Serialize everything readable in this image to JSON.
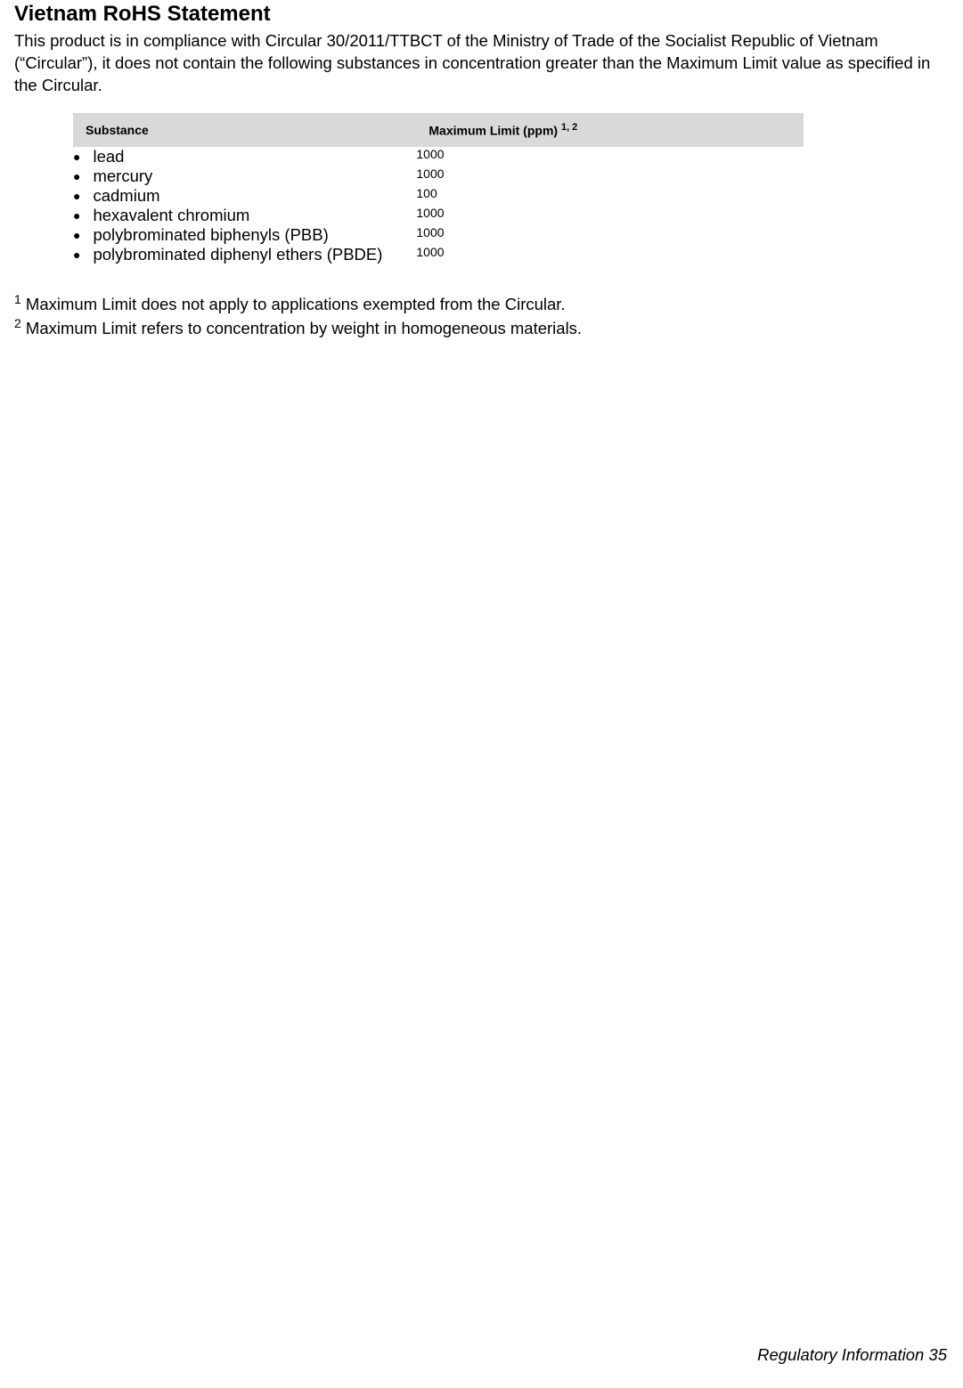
{
  "heading": "Vietnam RoHS Statement",
  "intro": "This product is in compliance with Circular 30/2011/TTBCT of the Ministry of Trade of the Socialist Republic of Vietnam (“Circular”), it does not contain the following substances in concentration greater than the Maximum Limit value as specified in the Circular.",
  "table": {
    "header_bg": "#d9d9d9",
    "columns": {
      "substance": "Substance",
      "max_limit_label": "Maximum Limit (ppm)",
      "max_limit_sup": "1, 2"
    },
    "rows": [
      {
        "substance": "lead",
        "limit": "1000"
      },
      {
        "substance": "mercury",
        "limit": "1000"
      },
      {
        "substance": "cadmium",
        "limit": "100"
      },
      {
        "substance": "hexavalent chromium",
        "limit": "1000"
      },
      {
        "substance": "polybrominated biphenyls (PBB)",
        "limit": "1000"
      },
      {
        "substance": "polybrominated diphenyl ethers (PBDE)",
        "limit": "1000"
      }
    ]
  },
  "footnotes": {
    "note1_sup": "1",
    "note1_text": " Maximum Limit does not apply to applications exempted from the Circular.",
    "note2_sup": "2",
    "note2_text": " Maximum Limit refers to concentration by weight in homogeneous materials."
  },
  "footer": "Regulatory Information 35"
}
